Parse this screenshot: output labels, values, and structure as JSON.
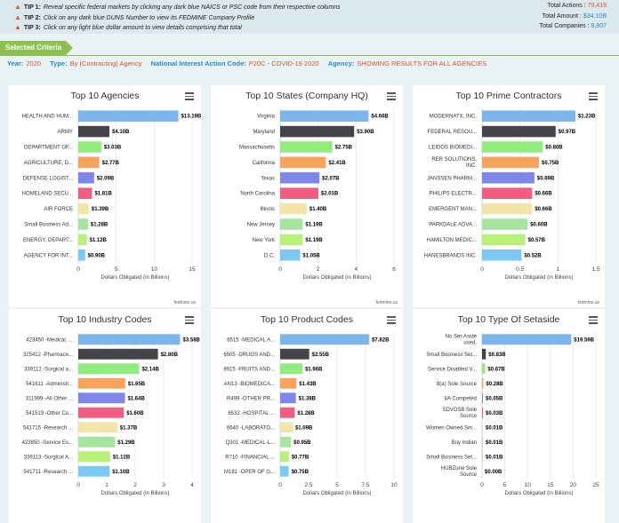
{
  "tips": [
    {
      "label": "TIP 1:",
      "text": "Reveal specific federal markets by clicking any dark blue NAICS or PSC code from their respective columns"
    },
    {
      "label": "TIP 2:",
      "text": "Click on any dark blue DUNS Number to view its FEDMINE Company Profile"
    },
    {
      "label": "TIP 3:",
      "text": "Click on any light blue dollar amount to view details comprising that total"
    }
  ],
  "totals": {
    "actions_label": "Total Actions : ",
    "actions_value": "79,419",
    "amount_label": "Total Amount : ",
    "amount_value": "$34.10B",
    "companies_label": "Total Companies : ",
    "companies_value": "9,807"
  },
  "criteria": {
    "header": "Selected Criteria",
    "year_label": "Year:",
    "year_value": "2020",
    "type_label": "Type:",
    "type_value": "By (Contracting) Agency",
    "nia_label": "National Interest Action Code:",
    "nia_value": "P20C - COVID-19 2020",
    "agency_label": "Agency:",
    "agency_value": "SHOWING RESULTS FOR ALL AGENCIES"
  },
  "colors": {
    "series": [
      "#7cb5ec",
      "#434348",
      "#90ed7d",
      "#f7a35c",
      "#8085e9",
      "#f15c80",
      "#e4d354",
      "#2b908f",
      "#f45b5b",
      "#91e8e1"
    ],
    "bar_colors": [
      "#7cb5ec",
      "#434348",
      "#90ed7d",
      "#f7a35c",
      "#8085e9",
      "#f15c80",
      "#f3e5a8",
      "#a8e3a0",
      "#b8f07a",
      "#7cc8f5"
    ]
  },
  "chart_data": [
    {
      "type": "bar",
      "title": "Top 10 Agencies",
      "xlabel": "Dollars Obligated (in Billions)",
      "xlim": [
        0,
        15
      ],
      "ticks": [
        0,
        5,
        10,
        15
      ],
      "tick_labels": [
        "0",
        "5",
        "10",
        "15"
      ],
      "credit": "fedmine.us",
      "categories": [
        "HEALTH AND HUM...",
        "ARMY",
        "DEPARTMENT OF...",
        "AGRICULTURE, D...",
        "DEFENSE LOGIST...",
        "HOMELAND SECU...",
        "AIR FORCE",
        "Small Business Ad...",
        "ENERGY, DEPART...",
        "AGENCY FOR INT..."
      ],
      "values": [
        13.19,
        4.1,
        3.03,
        2.77,
        2.09,
        1.81,
        1.39,
        1.28,
        1.12,
        0.9
      ],
      "data_labels": [
        "$13.19B",
        "$4.10B",
        "$3.03B",
        "$2.77B",
        "$2.09B",
        "$1.81B",
        "$1.39B",
        "$1.28B",
        "$1.12B",
        "$0.90B"
      ]
    },
    {
      "type": "bar",
      "title": "Top 10 States (Company HQ)",
      "xlabel": "Dollars Obligated (in Billions)",
      "xlim": [
        0,
        6
      ],
      "ticks": [
        0,
        2,
        4,
        6
      ],
      "tick_labels": [
        "0",
        "2",
        "4",
        "6"
      ],
      "credit": "fedmine.us",
      "categories": [
        "Virginia",
        "Maryland",
        "Massachusetts",
        "California",
        "Texas",
        "North Carolina",
        "Illinois",
        "New Jersey",
        "New York",
        "D.C."
      ],
      "values": [
        4.66,
        3.9,
        2.75,
        2.41,
        2.07,
        2.01,
        1.4,
        1.19,
        1.19,
        1.05
      ],
      "data_labels": [
        "$4.66B",
        "$3.90B",
        "$2.75B",
        "$2.41B",
        "$2.07B",
        "$2.01B",
        "$1.40B",
        "$1.19B",
        "$1.19B",
        "$1.05B"
      ]
    },
    {
      "type": "bar",
      "title": "Top 10 Prime Contractors",
      "xlabel": "Dollars Obligated (in Billions)",
      "xlim": [
        0,
        1.5
      ],
      "ticks": [
        0,
        0.5,
        1,
        1.5
      ],
      "tick_labels": [
        "0",
        "0.5",
        "1",
        "1.5"
      ],
      "credit": "fedmine.us",
      "categories": [
        "MODERNATX, INC.",
        "FEDERAL RESOU...",
        "LEIDOS BIOMEDI...",
        "RER SOLUTIONS, INC.",
        "JANSSEN PHARM...",
        "PHILIPS ELECTR...",
        "EMERGENT MAN...",
        "PARKDALE ADVA...",
        "HAMILTON MEDIC...",
        "HANESBRANDS INC."
      ],
      "values": [
        1.23,
        0.97,
        0.8,
        0.75,
        0.69,
        0.66,
        0.66,
        0.6,
        0.57,
        0.52
      ],
      "data_labels": [
        "$1.23B",
        "$0.97B",
        "$0.80B",
        "$0.75B",
        "$0.69B",
        "$0.66B",
        "$0.66B",
        "$0.60B",
        "$0.57B",
        "$0.52B"
      ]
    },
    {
      "type": "bar",
      "title": "Top 10 Industry Codes",
      "xlabel": "Dollars Obligated (in Billions)",
      "xlim": [
        0,
        4
      ],
      "ticks": [
        0,
        1,
        2,
        3,
        4
      ],
      "tick_labels": [
        "0",
        "1",
        "2",
        "3",
        "4"
      ],
      "credit": "",
      "categories": [
        "423450 -Medical, ...",
        "325412 -Pharmace...",
        "339112 -Surgical a...",
        "541611 -Administr...",
        "311999 -All Other ...",
        "541519 -Other Co...",
        "541715 -Research ...",
        "423850 -Service Es...",
        "339113 -Surgical A...",
        "541711 -Research ..."
      ],
      "values": [
        3.58,
        2.8,
        2.14,
        1.65,
        1.64,
        1.6,
        1.37,
        1.29,
        1.12,
        1.1
      ],
      "data_labels": [
        "$3.58B",
        "$2.80B",
        "$2.14B",
        "$1.65B",
        "$1.64B",
        "$1.60B",
        "$1.37B",
        "$1.29B",
        "$1.12B",
        "$1.10B"
      ]
    },
    {
      "type": "bar",
      "title": "Top 10 Product Codes",
      "xlabel": "Dollars Obligated (in Billions)",
      "xlim": [
        0,
        10
      ],
      "ticks": [
        0,
        2.5,
        5,
        7.5,
        10
      ],
      "tick_labels": [
        "0",
        "2.5",
        "5",
        "7.5",
        "10"
      ],
      "credit": "",
      "categories": [
        "6515 -MEDICAL A...",
        "6505 -DRUGS AND...",
        "8915 -FRUITS AND...",
        "AN13 -BIOMEDICA...",
        "R499 -OTHER PR...",
        "6532 -HOSPITAL ...",
        "6640 -LABORATO...",
        "Q301 -MEDICAL-L...",
        "R710 -FINANCIAL ...",
        "M181 -OPER OF G..."
      ],
      "values": [
        7.82,
        2.55,
        1.96,
        1.43,
        1.38,
        1.28,
        1.09,
        0.95,
        0.77,
        0.75
      ],
      "data_labels": [
        "$7.82B",
        "$2.55B",
        "$1.96B",
        "$1.43B",
        "$1.38B",
        "$1.28B",
        "$1.09B",
        "$0.95B",
        "$0.77B",
        "$0.75B"
      ]
    },
    {
      "type": "bar",
      "title": "Top 10 Type Of Setaside",
      "xlabel": "Dollars Obligated (in Billions)",
      "xlim": [
        0,
        25
      ],
      "ticks": [
        0,
        5,
        10,
        15,
        20,
        25
      ],
      "tick_labels": [
        "0",
        "5",
        "10",
        "15",
        "20",
        "25"
      ],
      "credit": "",
      "categories": [
        "No Set-Aside used.",
        "Small Business Set...",
        "Service Disabled V...",
        "8(a) Sole Source",
        "8A Competed",
        "SDVOSB Sole Source",
        "Women Owned Sm...",
        "Buy Indian",
        "Small Business Set...",
        "HUBZone Sole Source"
      ],
      "values": [
        19.59,
        0.83,
        0.67,
        0.28,
        0.05,
        0.03,
        0.01,
        0.01,
        0.01,
        0.0
      ],
      "data_labels": [
        "$19.59B",
        "$0.83B",
        "$0.67B",
        "$0.28B",
        "$0.05B",
        "$0.03B",
        "$0.01B",
        "$0.01B",
        "$0.01B",
        "$0.00B"
      ]
    }
  ]
}
